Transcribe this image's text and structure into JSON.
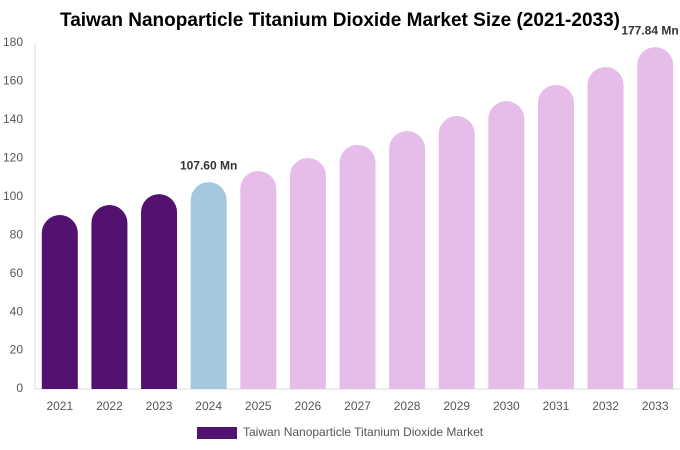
{
  "chart_data": {
    "type": "bar",
    "title": "Taiwan Nanoparticle Titanium Dioxide Market Size (2021-2033)",
    "categories": [
      "2021",
      "2022",
      "2023",
      "2024",
      "2025",
      "2026",
      "2027",
      "2028",
      "2029",
      "2030",
      "2031",
      "2032",
      "2033"
    ],
    "series": [
      {
        "name": "Taiwan Nanoparticle Titanium Dioxide Market",
        "color": "#541270",
        "colors": [
          "#541270",
          "#541270",
          "#541270",
          "#a4c9de",
          "#e5bde8",
          "#e5bde8",
          "#e5bde8",
          "#e5bde8",
          "#e5bde8",
          "#e5bde8",
          "#e5bde8",
          "#e5bde8",
          "#e5bde8"
        ],
        "values": [
          90.5,
          95.7,
          101.4,
          107.6,
          113.4,
          120.2,
          127,
          134.2,
          142,
          149.8,
          158.2,
          167.5,
          177.84
        ],
        "value_labels": [
          null,
          null,
          null,
          "107.60 Mn",
          null,
          null,
          null,
          null,
          null,
          null,
          null,
          null,
          "177.84 Mn"
        ]
      }
    ],
    "ylim": [
      0,
      180
    ],
    "yticks": [
      0,
      20,
      40,
      60,
      80,
      100,
      120,
      140,
      160,
      180
    ],
    "grid": false
  }
}
